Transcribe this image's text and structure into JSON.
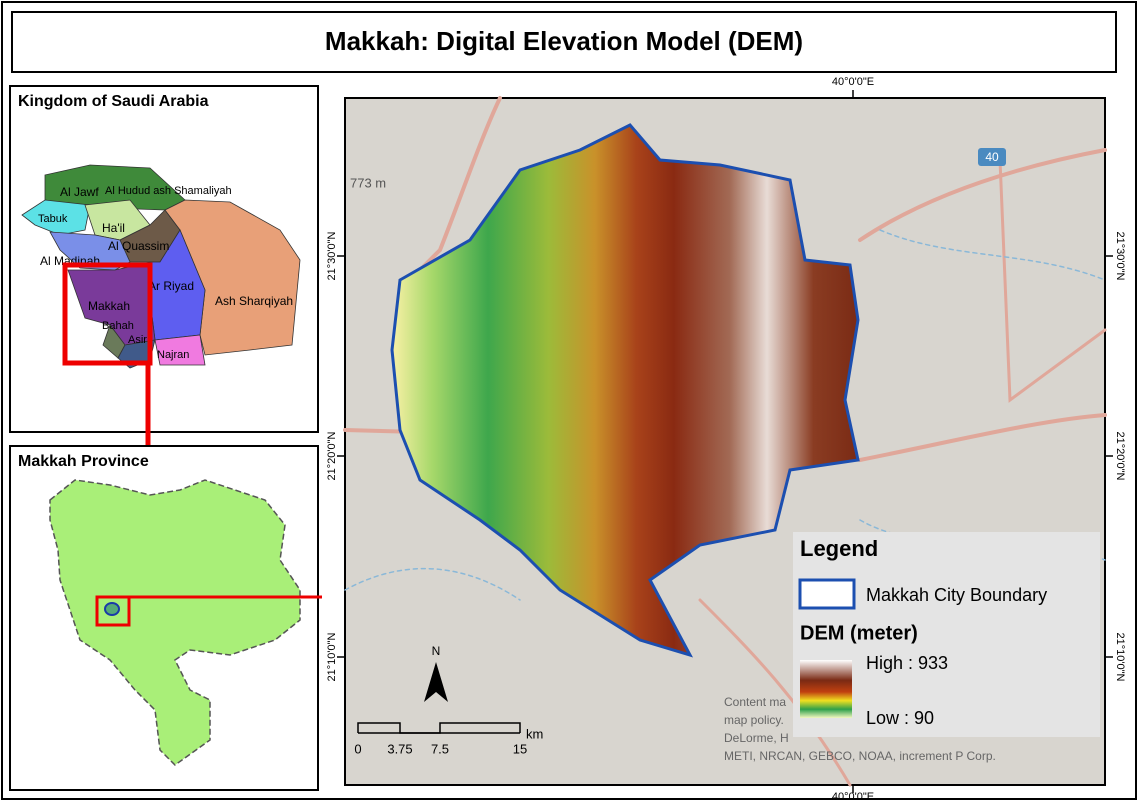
{
  "title": "Makkah: Digital Elevation Model (DEM)",
  "inset_country": {
    "title": "Kingdom of Saudi Arabia",
    "regions": [
      "Al Jawf",
      "Al Hudud ash Shamaliyah",
      "Tabuk",
      "Ha'il",
      "Al Quassim",
      "Al Madinah",
      "Ar Riyad",
      "Makkah",
      "Bahah",
      "Asir",
      "Najran",
      "Ash Sharqiyah"
    ]
  },
  "inset_province": {
    "title": "Makkah Province"
  },
  "main_map": {
    "grid_labels": {
      "top": "40°0'0\"E",
      "bottom": "40°0'0\"E",
      "lat": [
        "21°30'0\"N",
        "21°20'0\"N",
        "21°10'0\"N"
      ]
    },
    "basemap_labels": {
      "elevation": "773 m",
      "road": "40"
    },
    "north": "N",
    "scale": {
      "labels": [
        "0",
        "3.75",
        "7.5",
        "15"
      ],
      "unit": "km"
    },
    "attribution": [
      "Content ma",
      "map policy.",
      "DeLorme, H",
      "METI, NRCAN, GEBCO, NOAA, increment P Corp."
    ]
  },
  "legend": {
    "title": "Legend",
    "boundary": "Makkah City Boundary",
    "dem_title": "DEM (meter)",
    "high": "High : 933",
    "low": "Low : 90"
  }
}
